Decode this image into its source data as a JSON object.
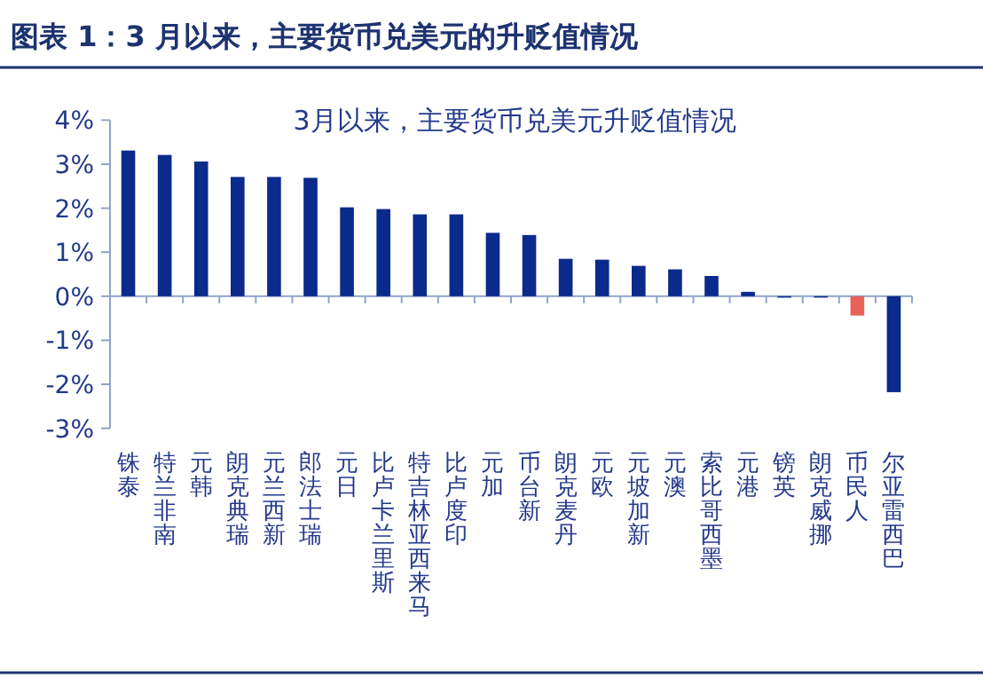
{
  "chart_data": {
    "type": "bar",
    "title": "图表 1：3 月以来，主要货币兑美元的升贬值情况",
    "subtitle": "3月以来，主要货币兑美元升贬值情况",
    "categories": [
      "泰铢",
      "南非兰特",
      "韩元",
      "瑞典克朗",
      "新西兰元",
      "瑞士法郎",
      "日元",
      "斯里兰卡卢比",
      "马来西亚林吉特",
      "印度卢比",
      "加元",
      "新台币",
      "丹麦克朗",
      "欧元",
      "新加坡元",
      "澳元",
      "墨西哥比索",
      "港元",
      "英镑",
      "挪威克朗",
      "人民币",
      "巴西雷亚尔"
    ],
    "values": [
      3.31,
      3.21,
      3.06,
      2.71,
      2.71,
      2.69,
      2.02,
      1.98,
      1.86,
      1.86,
      1.44,
      1.39,
      0.85,
      0.83,
      0.69,
      0.61,
      0.46,
      0.1,
      -0.02,
      -0.03,
      -0.44,
      -2.18
    ],
    "colors": [
      "#0a2a8c",
      "#0a2a8c",
      "#0a2a8c",
      "#0a2a8c",
      "#0a2a8c",
      "#0a2a8c",
      "#0a2a8c",
      "#0a2a8c",
      "#0a2a8c",
      "#0a2a8c",
      "#0a2a8c",
      "#0a2a8c",
      "#0a2a8c",
      "#0a2a8c",
      "#0a2a8c",
      "#0a2a8c",
      "#0a2a8c",
      "#0a2a8c",
      "#0a2a8c",
      "#0a2a8c",
      "#e8625a",
      "#0a2a8c"
    ],
    "ylim": [
      -3,
      4
    ],
    "yticks": [
      {
        "value": 4,
        "label": "4%"
      },
      {
        "value": 3,
        "label": "3%"
      },
      {
        "value": 2,
        "label": "2%"
      },
      {
        "value": 1,
        "label": "1%"
      },
      {
        "value": 0,
        "label": "0%"
      },
      {
        "value": -1,
        "label": "-1%"
      },
      {
        "value": -2,
        "label": "-2%"
      },
      {
        "value": -3,
        "label": "-3%"
      }
    ],
    "ref_lines": [
      {
        "axis": "y",
        "value": 0,
        "color": "#8fa3c8"
      }
    ],
    "grid": false
  }
}
